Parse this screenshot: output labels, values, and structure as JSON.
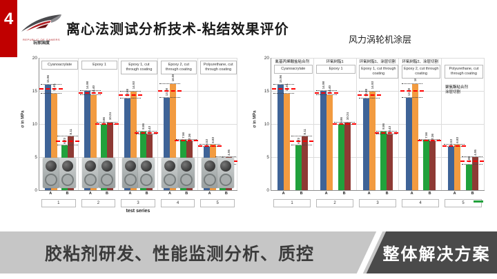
{
  "slide": {
    "page_number": "4",
    "title": "离心法测试分析技术-粘结效果评价",
    "subtitle": "风力涡轮机涂层",
    "logo": {
      "caption_line1": "REPUBLIC OF GAMERS",
      "caption_line2": "玩家国度"
    },
    "footer": {
      "left_text": "胶粘剂研发、性能监测分析、质控",
      "right_text": "整体解决方案"
    }
  },
  "colors": {
    "accent_red": "#c00000",
    "bar_blue": "#3e6397",
    "bar_orange": "#f29b40",
    "bar_green": "#21a13c",
    "bar_darkred": "#8e3a34",
    "ref_line_red": "#ff0000",
    "footer_band": "#c6c6c6",
    "footer_dark": "#4a4a4a"
  },
  "chart_data": [
    {
      "type": "bar",
      "title": "",
      "ylabel": "σ in MPa",
      "xlabel": "test series",
      "ylim": [
        0,
        20
      ],
      "yticks": [
        0,
        5,
        10,
        15,
        20
      ],
      "categories": [
        "1",
        "2",
        "3",
        "4",
        "5"
      ],
      "group_labels": [
        "Cyanoacrylate",
        "Epoxy 1",
        "Epoxy 1, cut through coating",
        "Epoxy 2, cut through coating",
        "Polyurethane, cut through coating"
      ],
      "subgroups": [
        "A",
        "B"
      ],
      "series": [
        {
          "name": "A-left",
          "color": "#3e6397",
          "values": [
            15.96,
            14.98,
            13.88,
            13.98,
            6.53
          ]
        },
        {
          "name": "A-right",
          "color": "#f29b40",
          "values": [
            14.61,
            14.4,
            14.93,
            16.08,
            6.83
          ]
        },
        {
          "name": "B-left",
          "color": "#21a13c",
          "values": [
            6.73,
            9.86,
            8.86,
            7.56,
            3.88
          ]
        },
        {
          "name": "B-right",
          "color": "#8e3a34",
          "values": [
            8.11,
            10.24,
            8.43,
            7.36,
            4.95
          ]
        }
      ],
      "reference_lines": {
        "A": [
          15.29,
          14.69,
          14.41,
          15.03,
          6.68
        ],
        "B": [
          7.42,
          10.05,
          8.65,
          7.46,
          4.42
        ]
      },
      "specimen_photos": true,
      "chinese_labels": null,
      "group_notes": null,
      "legend": null,
      "grid": true
    },
    {
      "type": "bar",
      "title": "",
      "ylabel": "σ in MPa",
      "xlabel": "",
      "ylim": [
        0,
        20
      ],
      "yticks": [
        0,
        5,
        10,
        15,
        20
      ],
      "categories": [
        "1",
        "2",
        "3",
        "4",
        "5"
      ],
      "group_labels": [
        "Cyanoacrylate",
        "Epoxy 1",
        "Epoxy 1, cut through coating",
        "Epoxy 2, cut through coating",
        "Polyurethane, cut through coating"
      ],
      "subgroups": [
        "A",
        "B"
      ],
      "series": [
        {
          "name": "A-left",
          "color": "#3e6397",
          "values": [
            15.96,
            14.98,
            13.88,
            13.98,
            6.53
          ]
        },
        {
          "name": "A-right",
          "color": "#f29b40",
          "values": [
            14.61,
            14.4,
            14.93,
            16.08,
            6.83
          ]
        },
        {
          "name": "B-left",
          "color": "#21a13c",
          "values": [
            6.73,
            9.86,
            8.86,
            7.56,
            3.88
          ]
        },
        {
          "name": "B-right",
          "color": "#8e3a34",
          "values": [
            8.11,
            10.24,
            8.43,
            7.36,
            4.95
          ]
        }
      ],
      "reference_lines": {
        "A": [
          15.29,
          14.69,
          14.41,
          15.03,
          6.68
        ],
        "B": [
          7.42,
          10.05,
          8.65,
          7.46,
          4.42
        ]
      },
      "specimen_photos": false,
      "chinese_labels": [
        "氰基丙烯酸盐粘合剂",
        "环氧树脂1",
        "环氧树脂1、涂层切割",
        "环氧树脂2、涂层切割",
        null
      ],
      "group_notes": [
        null,
        null,
        null,
        null,
        "聚氨酯粘合剂\n涂层切割"
      ],
      "legend": "green-dash-marker",
      "grid": true
    }
  ]
}
